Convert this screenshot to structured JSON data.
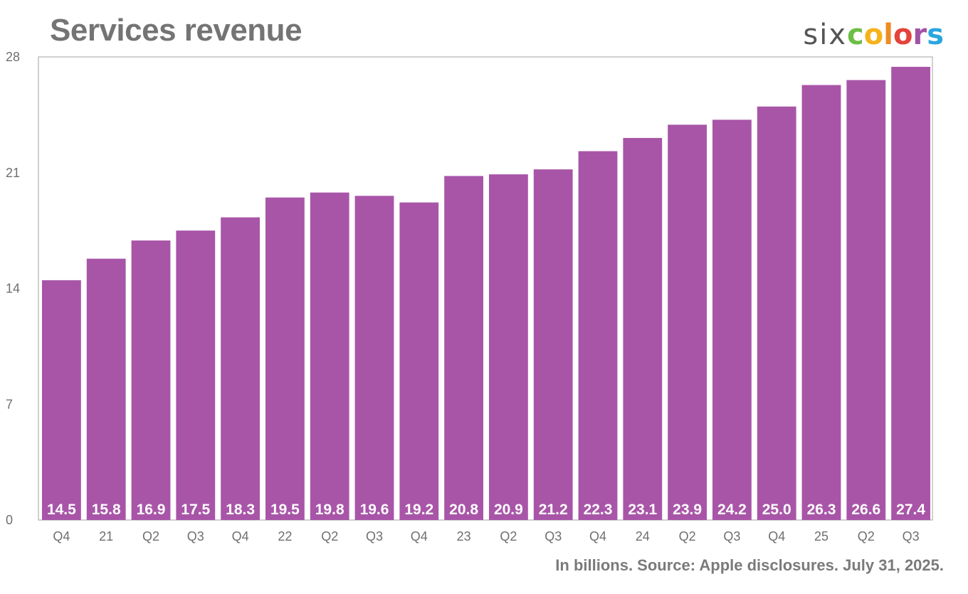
{
  "header": {
    "title": "Services revenue",
    "logo_prefix": "six",
    "logo_letters": [
      "c",
      "o",
      "l",
      "o",
      "r",
      "s"
    ],
    "logo_colors": [
      "#6cbe45",
      "#f5b21a",
      "#f08a24",
      "#e5423b",
      "#a253a6",
      "#2aa6df"
    ]
  },
  "footer": {
    "note": "In billions. Source: Apple disclosures. July 31, 2025."
  },
  "chart_data": {
    "type": "bar",
    "title": "Services revenue",
    "categories": [
      "Q4",
      "21",
      "Q2",
      "Q3",
      "Q4",
      "22",
      "Q2",
      "Q3",
      "Q4",
      "23",
      "Q2",
      "Q3",
      "Q4",
      "24",
      "Q2",
      "Q3",
      "Q4",
      "25",
      "Q2",
      "Q3"
    ],
    "values": [
      14.5,
      15.8,
      16.9,
      17.5,
      18.3,
      19.5,
      19.8,
      19.6,
      19.2,
      20.8,
      20.9,
      21.2,
      22.3,
      23.1,
      23.9,
      24.2,
      25.0,
      26.3,
      26.6,
      27.4
    ],
    "value_labels": [
      "14.5",
      "15.8",
      "16.9",
      "17.5",
      "18.3",
      "19.5",
      "19.8",
      "19.6",
      "19.2",
      "20.8",
      "20.9",
      "21.2",
      "22.3",
      "23.1",
      "23.9",
      "24.2",
      "25.0",
      "26.3",
      "26.6",
      "27.4"
    ],
    "ylim": [
      0,
      28
    ],
    "yticks": [
      "0",
      "7",
      "14",
      "21",
      "28"
    ],
    "grid": false,
    "bar_color": "#a855a8",
    "frame_color": "#b0b0b0"
  }
}
